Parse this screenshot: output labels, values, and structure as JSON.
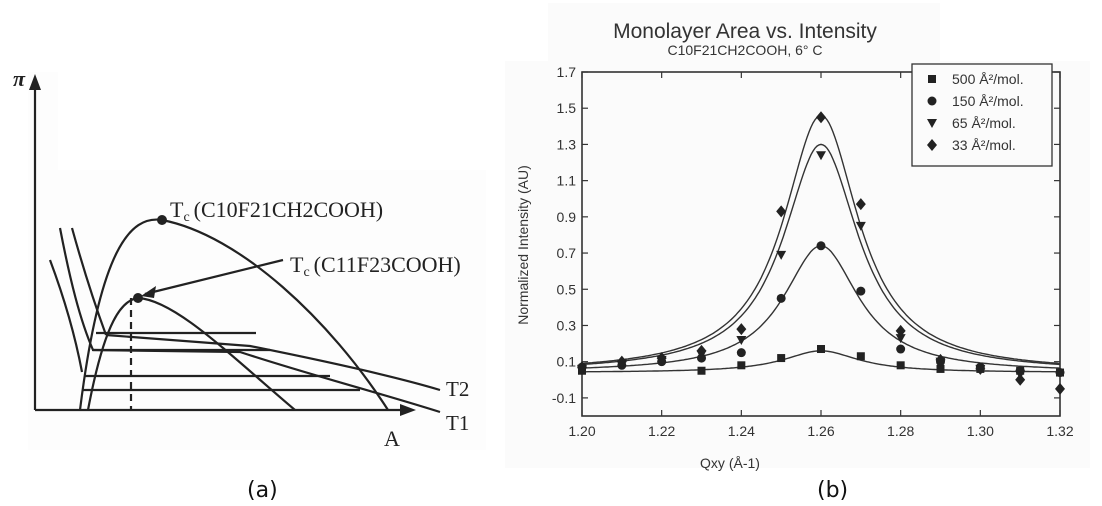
{
  "captions": {
    "a": "(a)",
    "b": "(b)"
  },
  "panel_a": {
    "y_axis_label": "π",
    "x_axis_label": "A",
    "isotherm_labels": {
      "t2": "T2",
      "t1": "T1"
    },
    "critical_labels": {
      "c10": {
        "prefix": "T",
        "sub": "c",
        "formula": "(C10F21CH2COOH)"
      },
      "c11": {
        "prefix": "T",
        "sub": "c",
        "formula": "(C11F23COOH)"
      }
    }
  },
  "chart_data": {
    "type": "scatter",
    "title": "Monolayer Area vs. Intensity",
    "subtitle": "C10F21CH2COOH, 6° C",
    "xlabel": "Qxy (Å-1)",
    "ylabel": "Normalized Intensity (AU)",
    "xlim": [
      1.2,
      1.32
    ],
    "ylim": [
      -0.2,
      1.7
    ],
    "x_ticks": [
      "1.20",
      "1.22",
      "1.24",
      "1.26",
      "1.28",
      "1.30",
      "1.32"
    ],
    "y_ticks": [
      "1.7",
      "1.5",
      "1.3",
      "1.1",
      "0.9",
      "0.7",
      "0.5",
      "0.3",
      "0.1",
      "-0.1"
    ],
    "legend_position": "top-right",
    "series": [
      {
        "name": "500 Å²/mol.",
        "marker": "square",
        "x": [
          1.2,
          1.23,
          1.24,
          1.25,
          1.26,
          1.27,
          1.28,
          1.29,
          1.3,
          1.31,
          1.32
        ],
        "y": [
          0.05,
          0.05,
          0.08,
          0.12,
          0.17,
          0.13,
          0.08,
          0.06,
          0.06,
          0.05,
          0.04
        ],
        "fit_peak": 0.16
      },
      {
        "name": "150 Å²/mol.",
        "marker": "circle",
        "x": [
          1.2,
          1.21,
          1.22,
          1.23,
          1.24,
          1.25,
          1.26,
          1.27,
          1.28,
          1.29,
          1.3,
          1.31,
          1.32
        ],
        "y": [
          0.07,
          0.08,
          0.1,
          0.12,
          0.15,
          0.45,
          0.74,
          0.49,
          0.17,
          0.1,
          0.07,
          0.05,
          0.04
        ],
        "fit_peak": 0.74
      },
      {
        "name": "65 Å²/mol.",
        "marker": "triangle-down",
        "x": [
          1.2,
          1.21,
          1.22,
          1.23,
          1.24,
          1.25,
          1.26,
          1.27,
          1.28,
          1.29,
          1.3,
          1.31
        ],
        "y": [
          0.06,
          0.09,
          0.11,
          0.14,
          0.22,
          0.69,
          1.24,
          0.85,
          0.23,
          0.1,
          0.06,
          0.03
        ],
        "fit_peak": 1.3
      },
      {
        "name": "33 Å²/mol.",
        "marker": "diamond",
        "x": [
          1.2,
          1.21,
          1.22,
          1.23,
          1.24,
          1.25,
          1.26,
          1.27,
          1.28,
          1.29,
          1.3,
          1.31,
          1.32
        ],
        "y": [
          0.07,
          0.1,
          0.12,
          0.16,
          0.28,
          0.93,
          1.45,
          0.97,
          0.27,
          0.11,
          0.06,
          0.0,
          -0.05
        ],
        "fit_peak": 1.46
      }
    ]
  }
}
